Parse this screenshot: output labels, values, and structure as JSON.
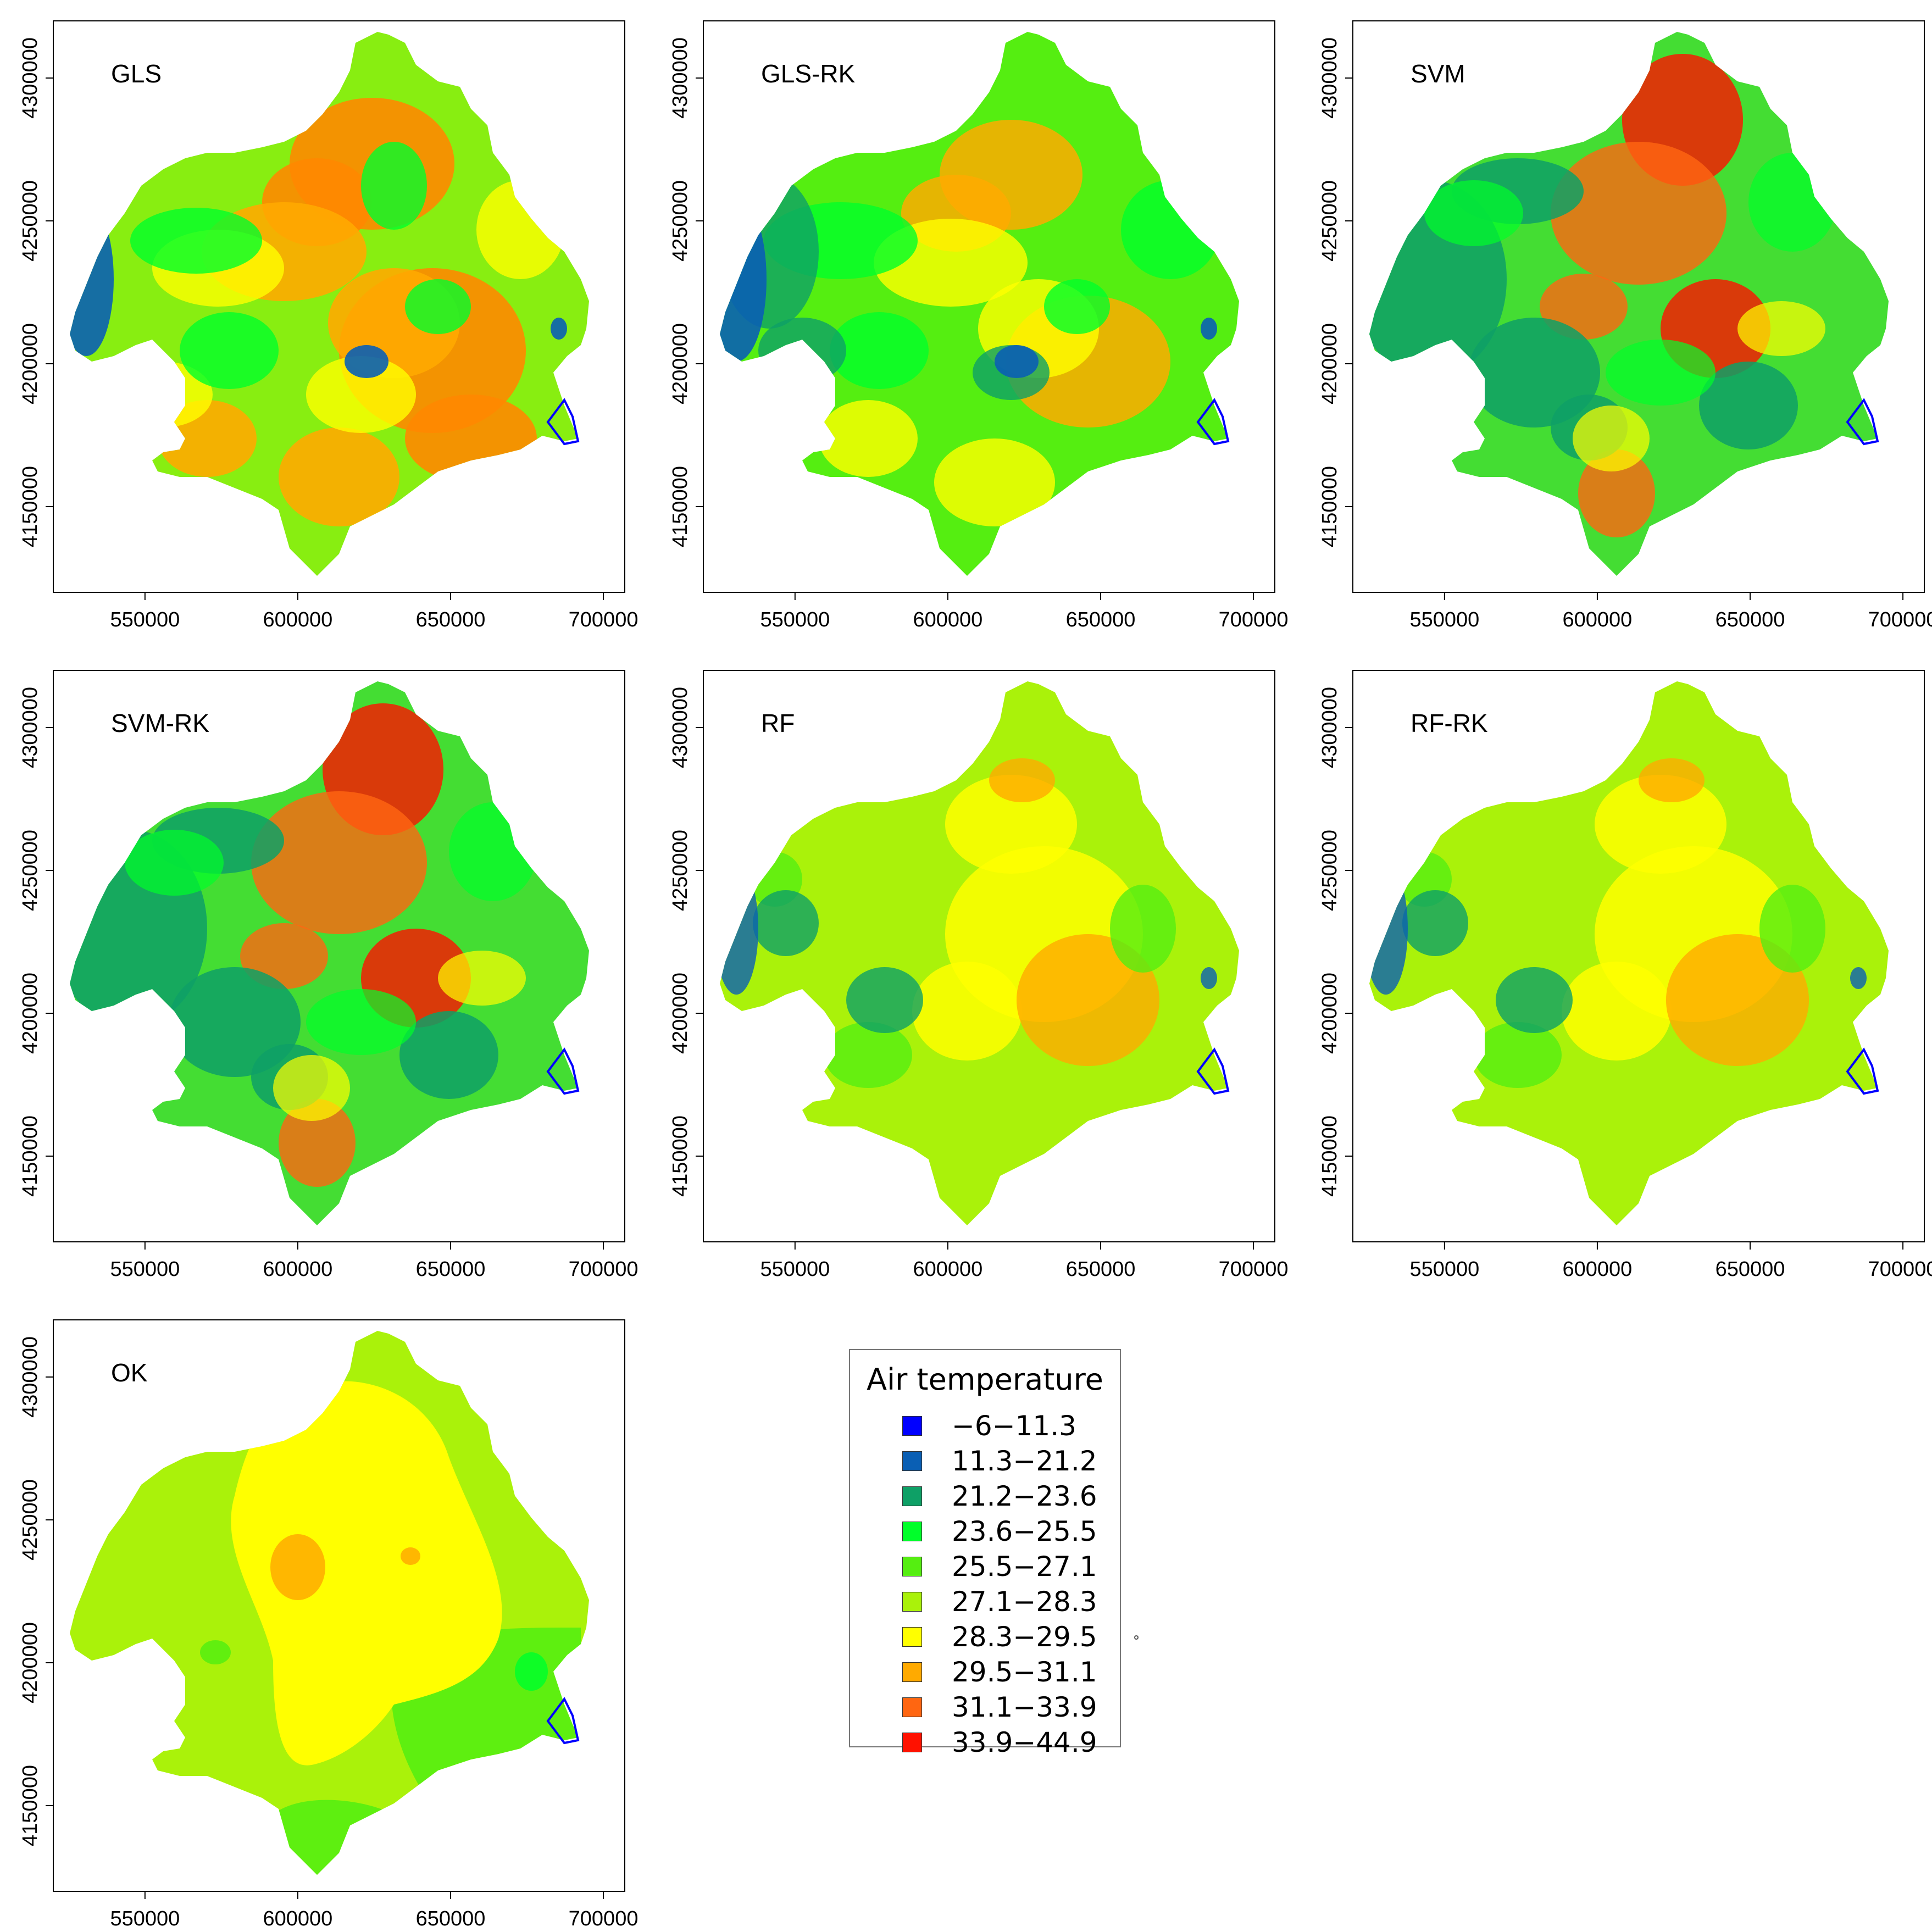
{
  "axes": {
    "x_ticks": [
      "550000",
      "600000",
      "650000",
      "700000"
    ],
    "y_ticks": [
      "4150000",
      "4200000",
      "4250000",
      "4300000"
    ]
  },
  "panels": [
    {
      "id": "gls",
      "title": "GLS",
      "palette": "warm"
    },
    {
      "id": "glsrk",
      "title": "GLS-RK",
      "palette": "cool-warm"
    },
    {
      "id": "svm",
      "title": "SVM",
      "palette": "red-green"
    },
    {
      "id": "svmrk",
      "title": "SVM-RK",
      "palette": "red-green"
    },
    {
      "id": "rf",
      "title": "RF",
      "palette": "yellow-green"
    },
    {
      "id": "rfrk",
      "title": "RF-RK",
      "palette": "yellow-green"
    },
    {
      "id": "ok",
      "title": "OK",
      "palette": "smooth"
    }
  ],
  "legend": {
    "title": "Air temperature",
    "items": [
      {
        "label": "−6−11.3",
        "color": "#0000ff"
      },
      {
        "label": "11.3−21.2",
        "color": "#0a5fb4"
      },
      {
        "label": "21.2−23.6",
        "color": "#0ea066"
      },
      {
        "label": "23.6−25.5",
        "color": "#00ff2a"
      },
      {
        "label": "25.5−27.1",
        "color": "#55ee11"
      },
      {
        "label": "27.1−28.3",
        "color": "#aaf20a"
      },
      {
        "label": "28.3−29.5",
        "color": "#ffff00"
      },
      {
        "label": "29.5−31.1",
        "color": "#ffaa00"
      },
      {
        "label": "31.1−33.9",
        "color": "#ff6611"
      },
      {
        "label": "33.9−44.9",
        "color": "#ff1100"
      }
    ]
  }
}
